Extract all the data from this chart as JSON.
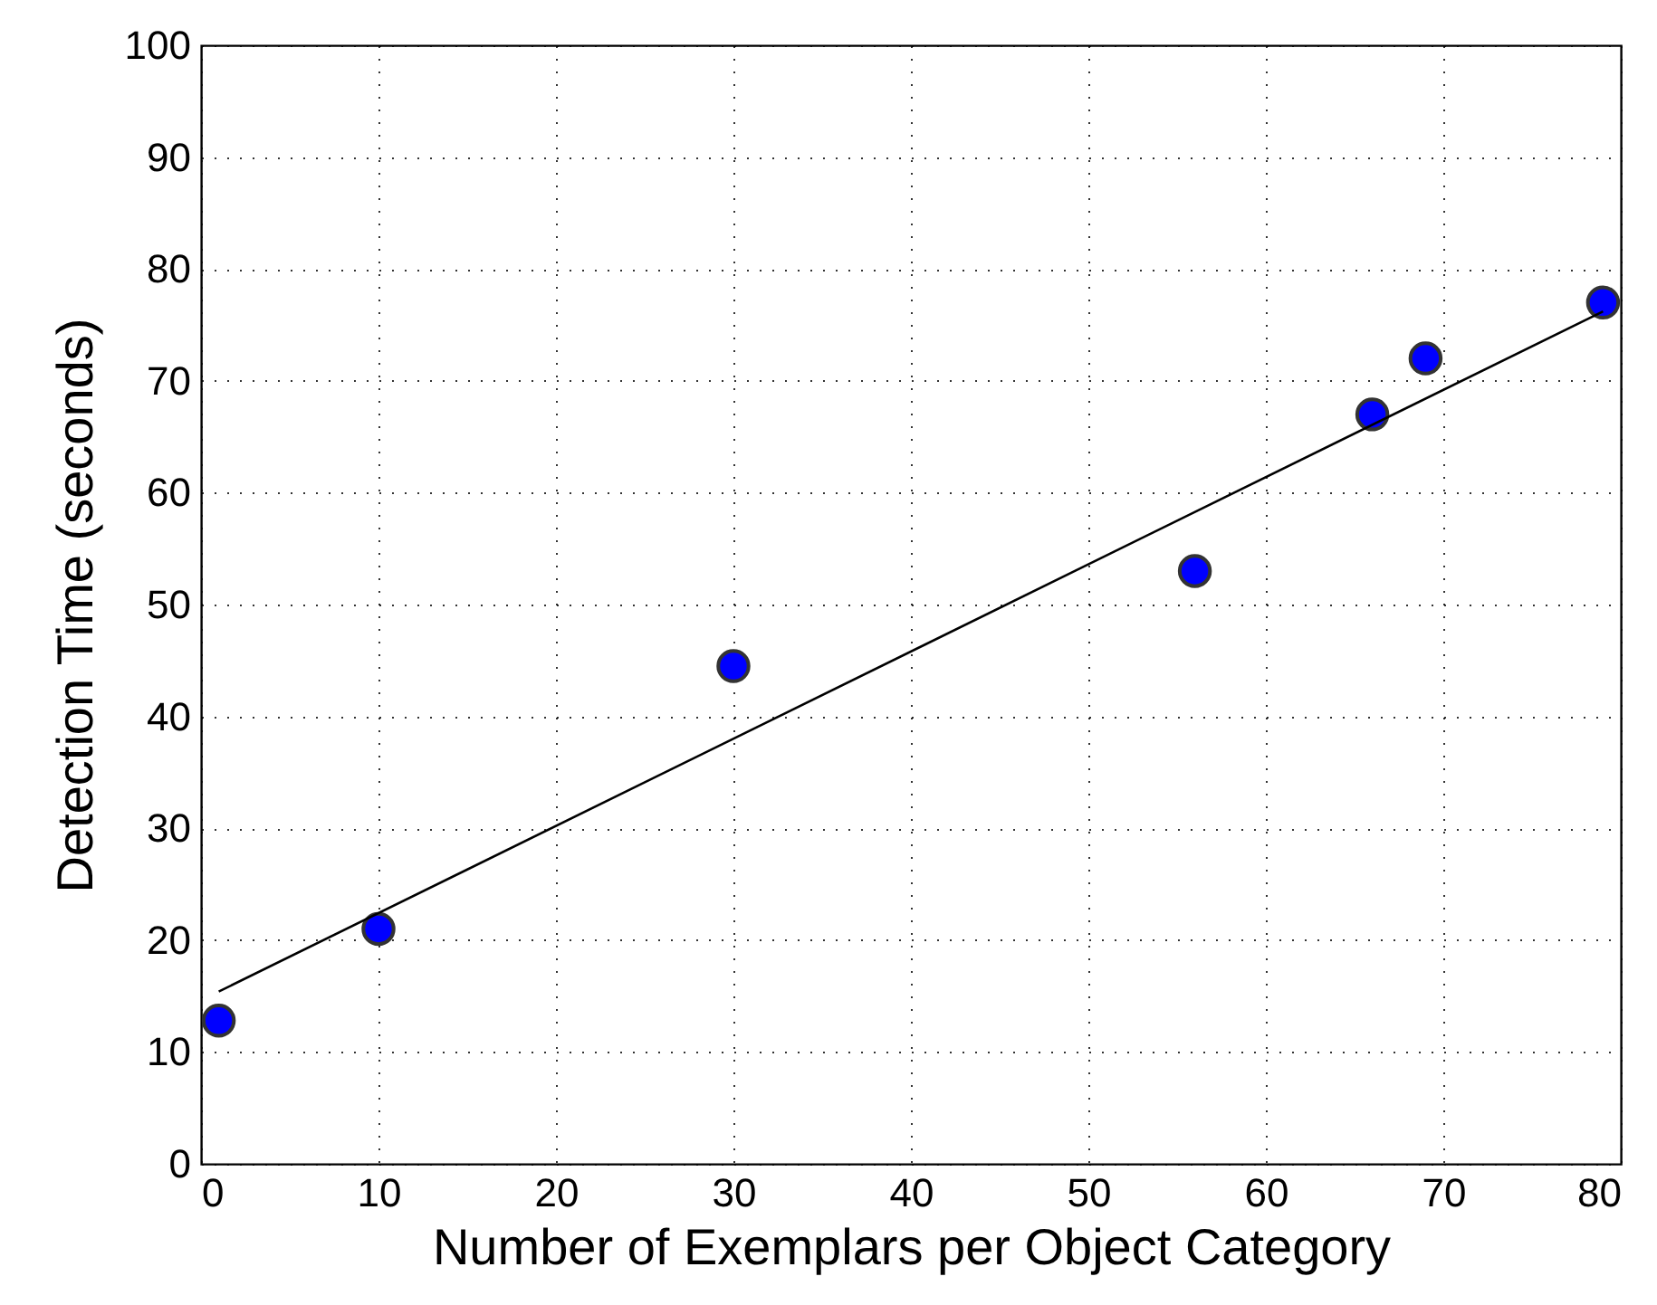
{
  "chart_data": {
    "type": "scatter",
    "xlabel": "Number of Exemplars per Object Category",
    "ylabel": "Detection Time (seconds)",
    "xlim": [
      0,
      80
    ],
    "ylim": [
      0,
      100
    ],
    "xticks": [
      0,
      10,
      20,
      30,
      40,
      50,
      60,
      70,
      80
    ],
    "yticks": [
      0,
      10,
      20,
      30,
      40,
      50,
      60,
      70,
      80,
      90,
      100
    ],
    "grid": true,
    "series": [
      {
        "color": "#0000ff",
        "marker": "circle",
        "x": [
          1,
          10,
          30,
          56,
          66,
          69,
          79
        ],
        "values": [
          12.8,
          21,
          44.5,
          53,
          67,
          72,
          77
        ]
      },
      {
        "type": "line",
        "color": "#000000",
        "marker": "none",
        "line_style": "solid",
        "x": [
          1,
          79
        ],
        "values": [
          15.4,
          76.2
        ]
      }
    ]
  }
}
